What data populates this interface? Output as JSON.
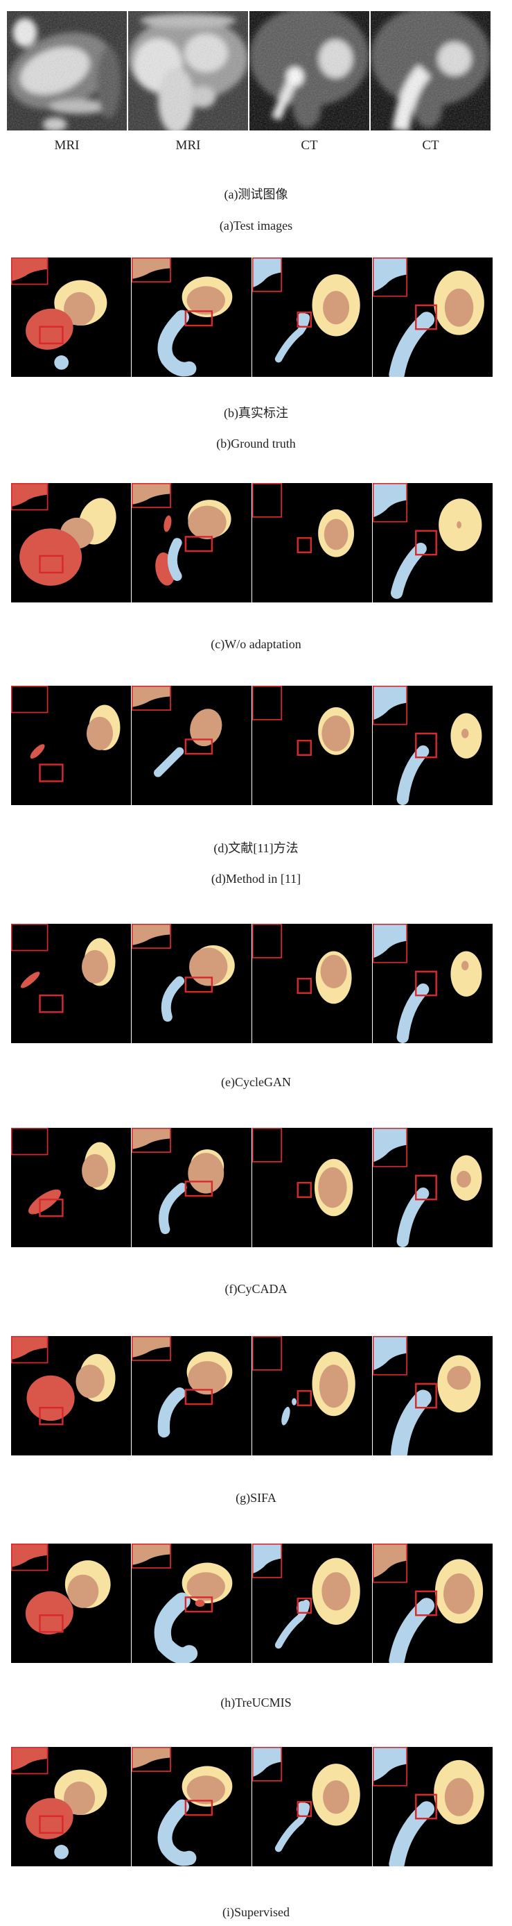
{
  "figure": {
    "column_labels": [
      "MRI",
      "MRI",
      "CT",
      "CT"
    ],
    "rows": [
      {
        "key": "a",
        "caption_zh": "(a)测试图像",
        "caption_en": "(a)Test images"
      },
      {
        "key": "b",
        "caption_zh": "(b)真实标注",
        "caption_en": "(b)Ground truth"
      },
      {
        "key": "c",
        "caption_en": "(c)W/o adaptation"
      },
      {
        "key": "d",
        "caption_zh": "(d)文献[11]方法",
        "caption_en": "(d)Method in [11]"
      },
      {
        "key": "e",
        "caption_en": "(e)CycleGAN"
      },
      {
        "key": "f",
        "caption_en": "(f)CyCADA"
      },
      {
        "key": "g",
        "caption_en": "(g)SIFA"
      },
      {
        "key": "h",
        "caption_en": "(h)TreUCMIS"
      },
      {
        "key": "i",
        "caption_en": "(i)Supervised"
      }
    ]
  },
  "colors": {
    "red_label": "#d9564a",
    "tan_label": "#d39d7c",
    "yellow_label": "#f7e2a2",
    "blue_label": "#b3d3ea",
    "highlight_box": "#d8282e",
    "background": "#000000"
  }
}
